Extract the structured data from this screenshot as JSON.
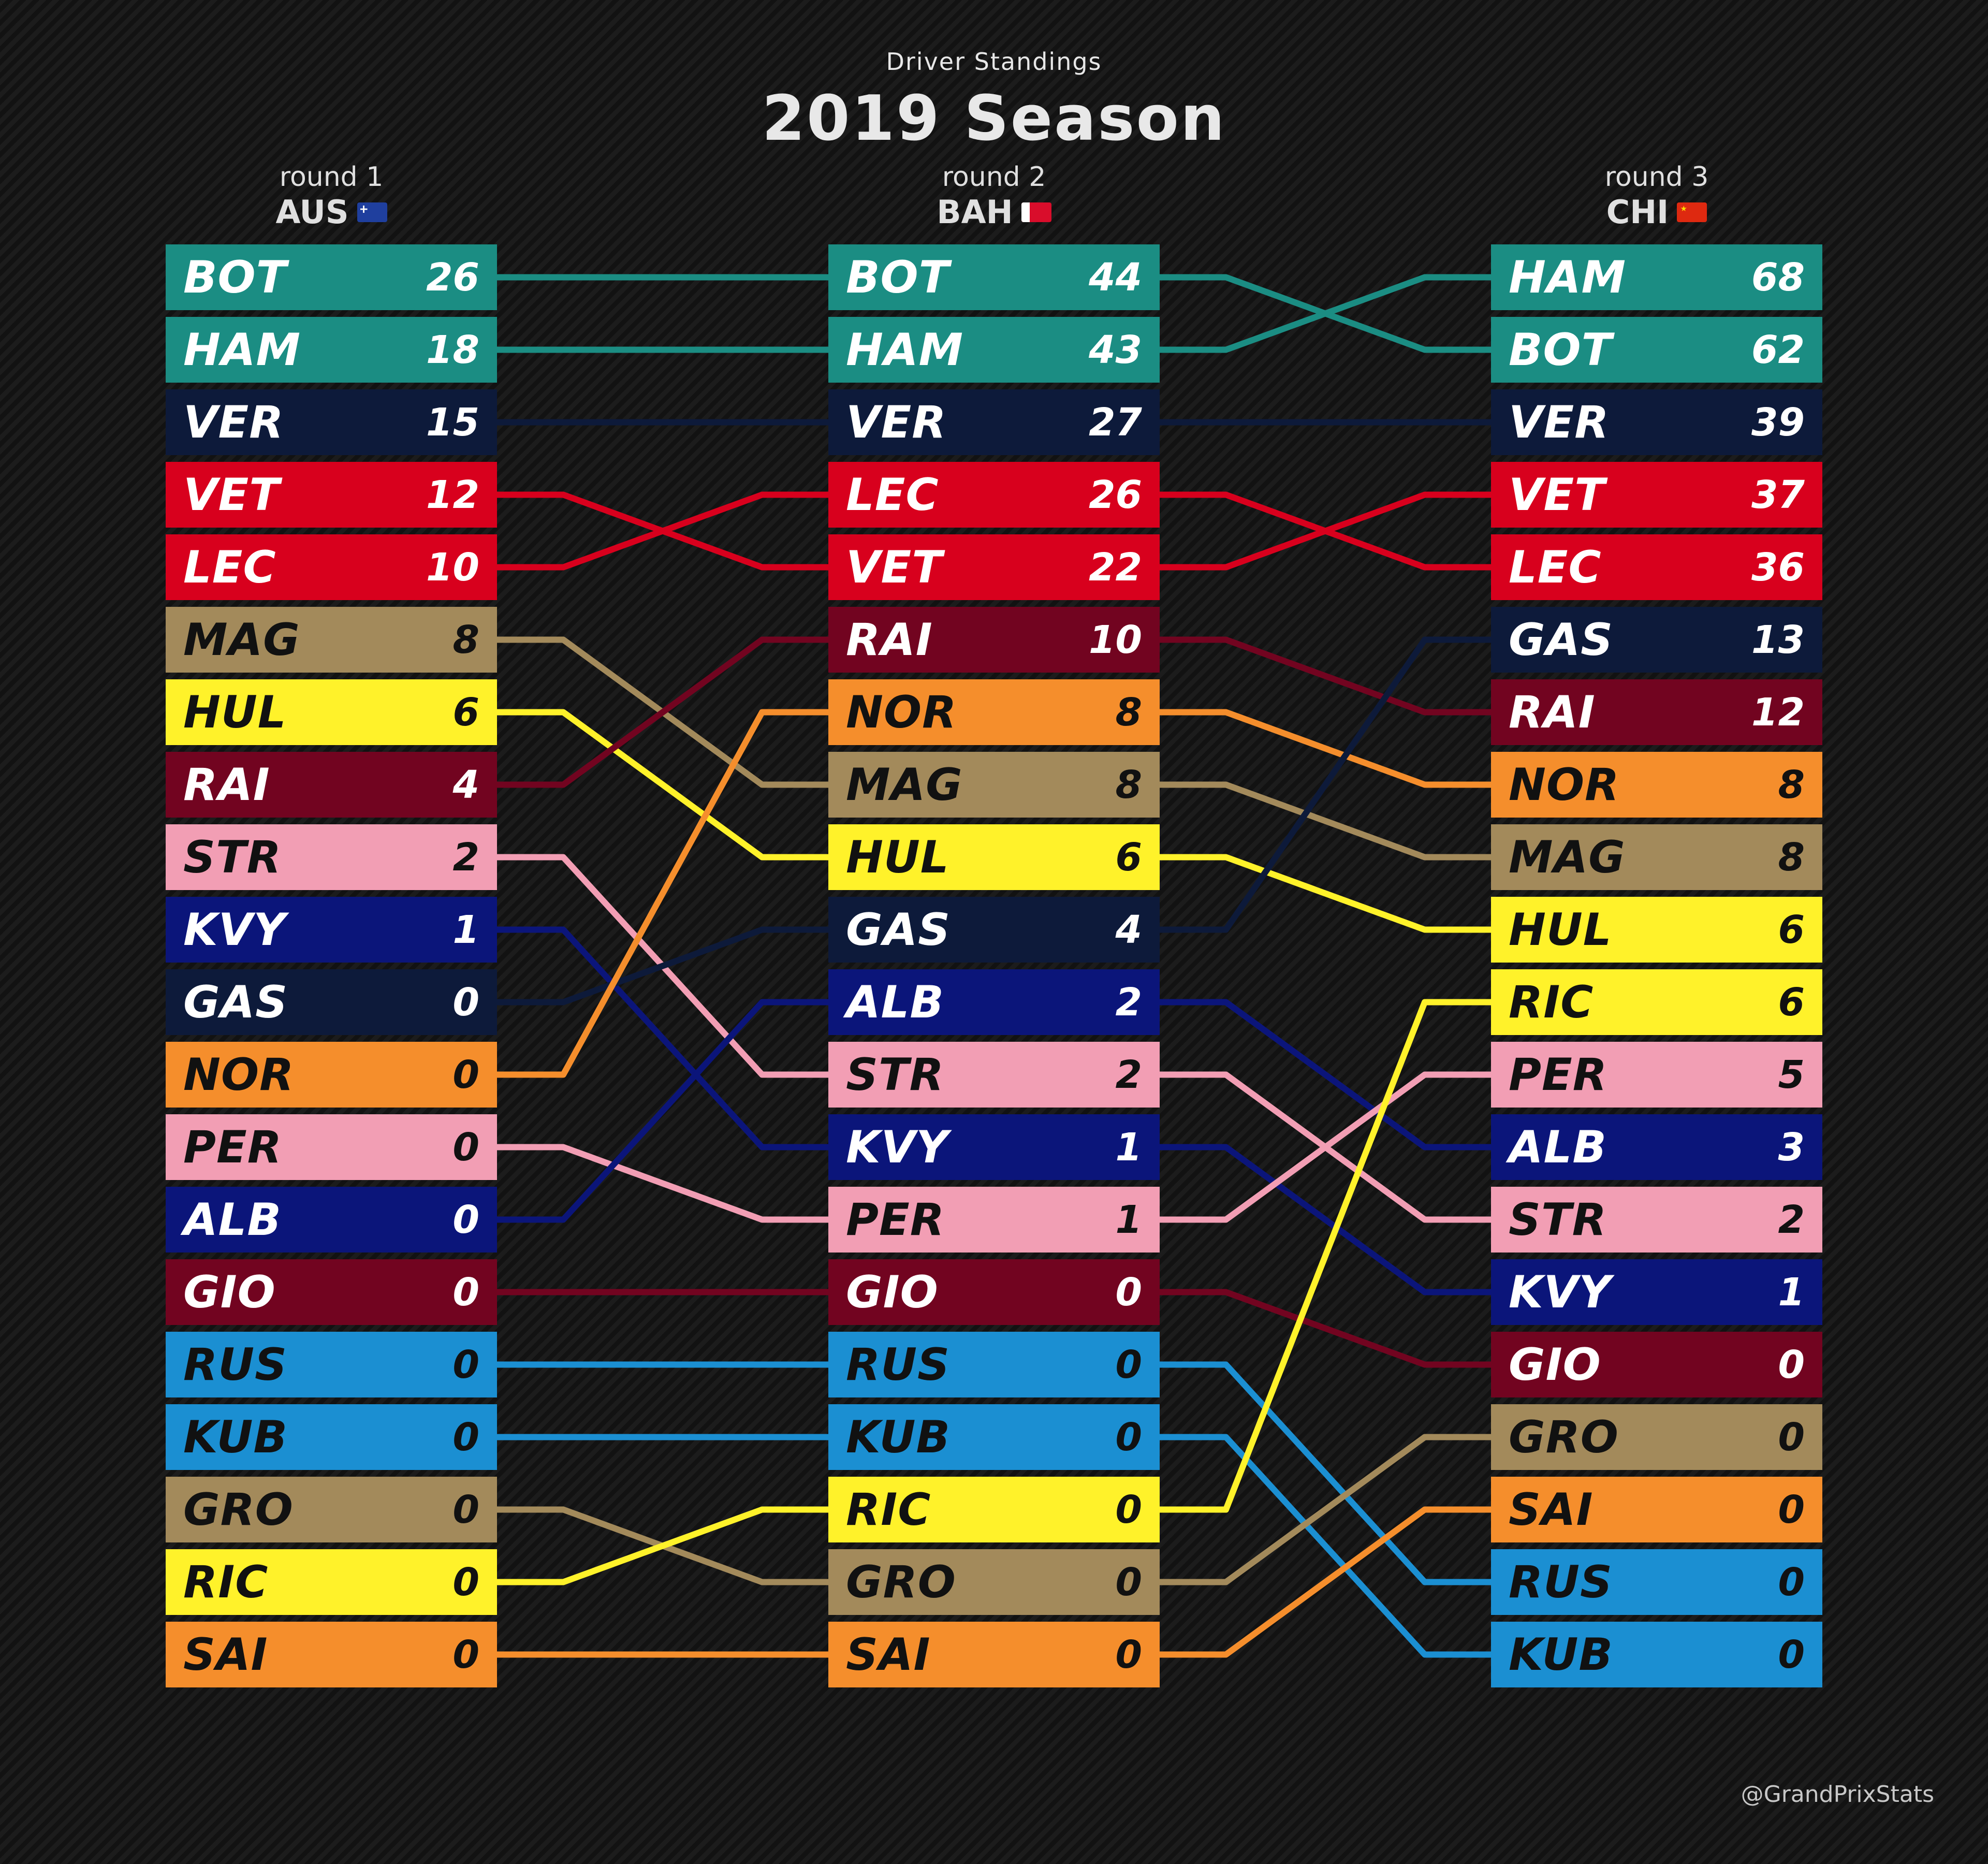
{
  "header": {
    "subtitle": "Driver Standings",
    "title": "2019 Season"
  },
  "credit": "@GrandPrixStats",
  "rounds": [
    {
      "label": "round 1",
      "race": "AUS",
      "flag": "australia-flag"
    },
    {
      "label": "round 2",
      "race": "BAH",
      "flag": "bahrain-flag"
    },
    {
      "label": "round 3",
      "race": "CHI",
      "flag": "china-flag"
    }
  ],
  "team_colors": {
    "BOT": "#1b8d83",
    "HAM": "#1b8d83",
    "VER": "#0d1a3a",
    "GAS": "#0d1a3a",
    "VET": "#d8001d",
    "LEC": "#d8001d",
    "MAG": "#a38a5b",
    "GRO": "#a38a5b",
    "HUL": "#fff22a",
    "RIC": "#fff22a",
    "RAI": "#720420",
    "GIO": "#720420",
    "STR": "#f29eb4",
    "PER": "#f29eb4",
    "KVY": "#0b157a",
    "ALB": "#0b157a",
    "NOR": "#f58e2c",
    "SAI": "#f58e2c",
    "RUS": "#1b8fd2",
    "KUB": "#1b8fd2"
  },
  "chart_data": {
    "type": "table",
    "title": "2019 Season",
    "subtitle": "Driver Standings",
    "rounds": [
      {
        "label": "round 1",
        "race": "AUS",
        "standings": [
          {
            "driver": "BOT",
            "points": 26
          },
          {
            "driver": "HAM",
            "points": 18
          },
          {
            "driver": "VER",
            "points": 15
          },
          {
            "driver": "VET",
            "points": 12
          },
          {
            "driver": "LEC",
            "points": 10
          },
          {
            "driver": "MAG",
            "points": 8
          },
          {
            "driver": "HUL",
            "points": 6
          },
          {
            "driver": "RAI",
            "points": 4
          },
          {
            "driver": "STR",
            "points": 2
          },
          {
            "driver": "KVY",
            "points": 1
          },
          {
            "driver": "GAS",
            "points": 0
          },
          {
            "driver": "NOR",
            "points": 0
          },
          {
            "driver": "PER",
            "points": 0
          },
          {
            "driver": "ALB",
            "points": 0
          },
          {
            "driver": "GIO",
            "points": 0
          },
          {
            "driver": "RUS",
            "points": 0
          },
          {
            "driver": "KUB",
            "points": 0
          },
          {
            "driver": "GRO",
            "points": 0
          },
          {
            "driver": "RIC",
            "points": 0
          },
          {
            "driver": "SAI",
            "points": 0
          }
        ]
      },
      {
        "label": "round 2",
        "race": "BAH",
        "standings": [
          {
            "driver": "BOT",
            "points": 44
          },
          {
            "driver": "HAM",
            "points": 43
          },
          {
            "driver": "VER",
            "points": 27
          },
          {
            "driver": "LEC",
            "points": 26
          },
          {
            "driver": "VET",
            "points": 22
          },
          {
            "driver": "RAI",
            "points": 10
          },
          {
            "driver": "NOR",
            "points": 8
          },
          {
            "driver": "MAG",
            "points": 8
          },
          {
            "driver": "HUL",
            "points": 6
          },
          {
            "driver": "GAS",
            "points": 4
          },
          {
            "driver": "ALB",
            "points": 2
          },
          {
            "driver": "STR",
            "points": 2
          },
          {
            "driver": "KVY",
            "points": 1
          },
          {
            "driver": "PER",
            "points": 1
          },
          {
            "driver": "GIO",
            "points": 0
          },
          {
            "driver": "RUS",
            "points": 0
          },
          {
            "driver": "KUB",
            "points": 0
          },
          {
            "driver": "RIC",
            "points": 0
          },
          {
            "driver": "GRO",
            "points": 0
          },
          {
            "driver": "SAI",
            "points": 0
          }
        ]
      },
      {
        "label": "round 3",
        "race": "CHI",
        "standings": [
          {
            "driver": "HAM",
            "points": 68
          },
          {
            "driver": "BOT",
            "points": 62
          },
          {
            "driver": "VER",
            "points": 39
          },
          {
            "driver": "VET",
            "points": 37
          },
          {
            "driver": "LEC",
            "points": 36
          },
          {
            "driver": "GAS",
            "points": 13
          },
          {
            "driver": "RAI",
            "points": 12
          },
          {
            "driver": "NOR",
            "points": 8
          },
          {
            "driver": "MAG",
            "points": 8
          },
          {
            "driver": "HUL",
            "points": 6
          },
          {
            "driver": "RIC",
            "points": 6
          },
          {
            "driver": "PER",
            "points": 5
          },
          {
            "driver": "ALB",
            "points": 3
          },
          {
            "driver": "STR",
            "points": 2
          },
          {
            "driver": "KVY",
            "points": 1
          },
          {
            "driver": "GIO",
            "points": 0
          },
          {
            "driver": "GRO",
            "points": 0
          },
          {
            "driver": "SAI",
            "points": 0
          },
          {
            "driver": "RUS",
            "points": 0
          },
          {
            "driver": "KUB",
            "points": 0
          }
        ]
      }
    ]
  }
}
